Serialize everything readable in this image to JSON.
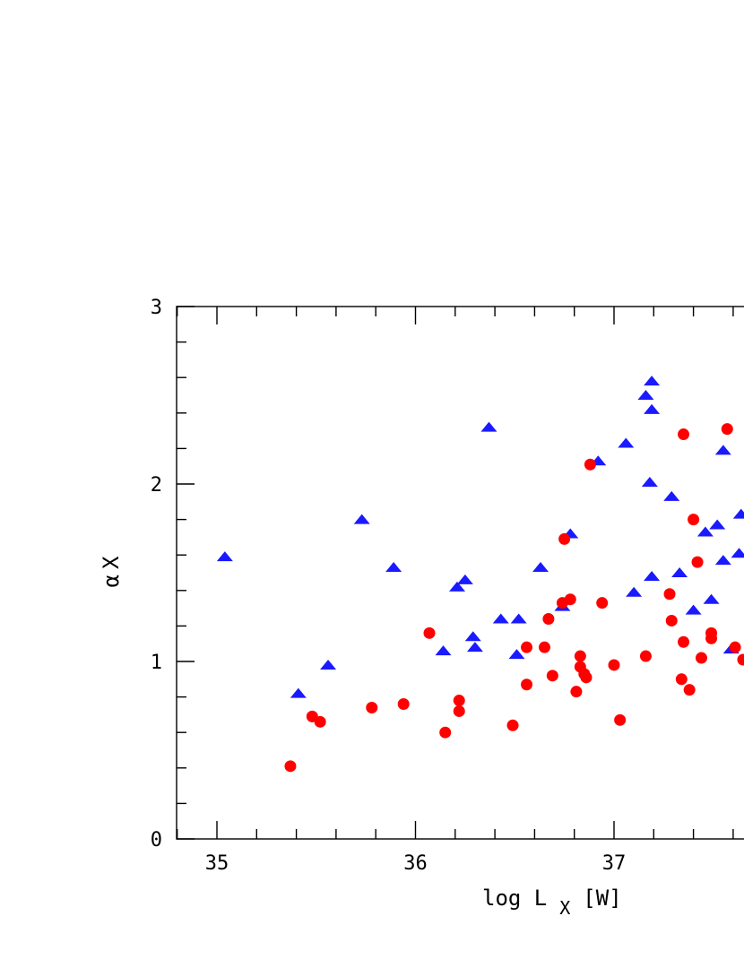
{
  "chart_data": {
    "type": "scatter",
    "xlabel": {
      "main": "log L",
      "subscript": "X",
      "unit": "[W]"
    },
    "ylabel": {
      "greek": "α",
      "subscript": "X"
    },
    "xlim": [
      34.8,
      38.0
    ],
    "ylim": [
      0,
      3
    ],
    "x_ticks": [
      35,
      36,
      37
    ],
    "x_tick_labels": [
      "35",
      "36",
      "37"
    ],
    "y_ticks": [
      0,
      1,
      2,
      3
    ],
    "y_tick_labels": [
      "0",
      "1",
      "2",
      "3"
    ],
    "grid": false,
    "legend": "none",
    "series": [
      {
        "marker": "triangle",
        "color": "#1a1aff",
        "points": [
          [
            35.04,
            1.59
          ],
          [
            35.41,
            0.82
          ],
          [
            35.56,
            0.98
          ],
          [
            35.73,
            1.8
          ],
          [
            35.89,
            1.53
          ],
          [
            36.14,
            1.06
          ],
          [
            36.21,
            1.42
          ],
          [
            36.25,
            1.46
          ],
          [
            36.29,
            1.14
          ],
          [
            36.3,
            1.08
          ],
          [
            36.37,
            2.32
          ],
          [
            36.43,
            1.24
          ],
          [
            36.51,
            1.04
          ],
          [
            36.52,
            1.24
          ],
          [
            36.63,
            1.53
          ],
          [
            36.74,
            1.31
          ],
          [
            36.78,
            1.72
          ],
          [
            36.92,
            2.13
          ],
          [
            37.06,
            2.23
          ],
          [
            37.1,
            1.39
          ],
          [
            37.16,
            2.5
          ],
          [
            37.19,
            2.58
          ],
          [
            37.19,
            2.42
          ],
          [
            37.18,
            2.01
          ],
          [
            37.19,
            1.48
          ],
          [
            37.29,
            1.93
          ],
          [
            37.33,
            1.5
          ],
          [
            37.4,
            1.29
          ],
          [
            37.46,
            1.73
          ],
          [
            37.49,
            1.35
          ],
          [
            37.52,
            1.77
          ],
          [
            37.55,
            1.57
          ],
          [
            37.55,
            2.19
          ],
          [
            37.59,
            1.07
          ],
          [
            37.63,
            1.61
          ],
          [
            37.64,
            1.83
          ]
        ]
      },
      {
        "marker": "circle",
        "color": "#ff0000",
        "points": [
          [
            35.37,
            0.41
          ],
          [
            35.48,
            0.69
          ],
          [
            35.52,
            0.66
          ],
          [
            35.78,
            0.74
          ],
          [
            35.94,
            0.76
          ],
          [
            36.07,
            1.16
          ],
          [
            36.15,
            0.6
          ],
          [
            36.22,
            0.78
          ],
          [
            36.22,
            0.72
          ],
          [
            36.49,
            0.64
          ],
          [
            36.56,
            0.87
          ],
          [
            36.56,
            1.08
          ],
          [
            36.65,
            1.08
          ],
          [
            36.67,
            1.24
          ],
          [
            36.69,
            0.92
          ],
          [
            36.74,
            1.33
          ],
          [
            36.75,
            1.69
          ],
          [
            36.78,
            1.35
          ],
          [
            36.81,
            0.83
          ],
          [
            36.83,
            1.03
          ],
          [
            36.83,
            0.97
          ],
          [
            36.85,
            0.93
          ],
          [
            36.86,
            0.91
          ],
          [
            36.88,
            2.11
          ],
          [
            36.94,
            1.33
          ],
          [
            37.0,
            0.98
          ],
          [
            37.03,
            0.67
          ],
          [
            37.16,
            1.03
          ],
          [
            37.28,
            1.38
          ],
          [
            37.29,
            1.23
          ],
          [
            37.34,
            0.9
          ],
          [
            37.35,
            1.11
          ],
          [
            37.35,
            2.28
          ],
          [
            37.38,
            0.84
          ],
          [
            37.4,
            1.8
          ],
          [
            37.42,
            1.56
          ],
          [
            37.44,
            1.02
          ],
          [
            37.49,
            1.16
          ],
          [
            37.49,
            1.13
          ],
          [
            37.57,
            2.31
          ],
          [
            37.61,
            1.08
          ],
          [
            37.65,
            1.01
          ]
        ]
      }
    ]
  }
}
